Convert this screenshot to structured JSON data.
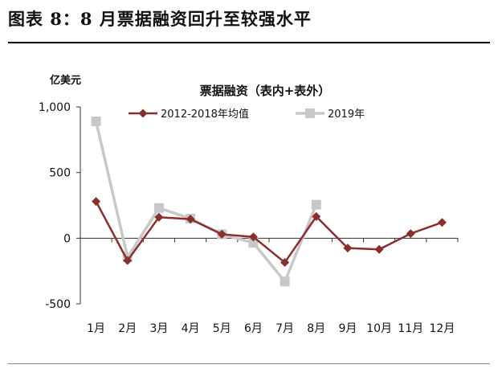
{
  "figure_title": "图表 8：8 月票据融资回升至较强水平",
  "chart_data": {
    "type": "line",
    "title": "票据融资（表内+表外）",
    "ylabel": "亿美元",
    "xlabel": "",
    "ylim": [
      -500,
      1000
    ],
    "yticks": [
      1000,
      500,
      0,
      -500
    ],
    "ytick_labels": [
      "1,000",
      "500",
      "0",
      "-500"
    ],
    "categories": [
      "1月",
      "2月",
      "3月",
      "4月",
      "5月",
      "6月",
      "7月",
      "8月",
      "9月",
      "10月",
      "11月",
      "12月"
    ],
    "grid": false,
    "legend_position": "top",
    "series": [
      {
        "name": "2012-2018年均值",
        "color": "#8B2E2E",
        "marker": "diamond",
        "values": [
          280,
          -170,
          160,
          145,
          30,
          10,
          -185,
          165,
          -75,
          -85,
          35,
          120
        ]
      },
      {
        "name": "2019年",
        "color": "#C8C8C8",
        "marker": "square",
        "values": [
          890,
          -145,
          230,
          150,
          30,
          -35,
          -330,
          255,
          null,
          null,
          null,
          null
        ]
      }
    ]
  }
}
